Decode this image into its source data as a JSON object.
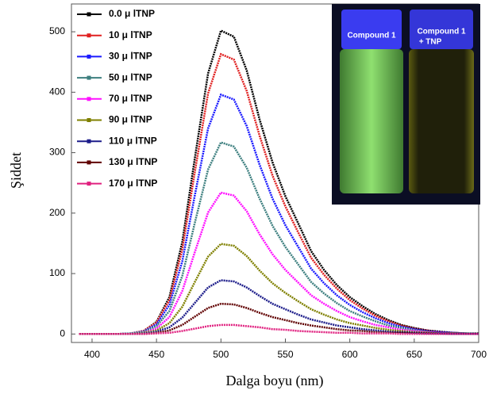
{
  "chart_data": {
    "type": "line",
    "xlabel": "Dalga boyu (nm)",
    "ylabel": "Şiddet",
    "x": [
      390,
      400,
      410,
      420,
      430,
      440,
      450,
      460,
      470,
      480,
      490,
      500,
      510,
      520,
      530,
      540,
      550,
      560,
      570,
      580,
      590,
      600,
      610,
      620,
      630,
      640,
      650,
      660,
      670,
      680,
      690,
      700
    ],
    "xlim": [
      384,
      700
    ],
    "xticks": [
      400,
      450,
      500,
      550,
      600,
      650,
      700
    ],
    "ylim": [
      -14,
      546
    ],
    "yticks": [
      0,
      100,
      200,
      300,
      400,
      500
    ],
    "legend": "upper left",
    "series": [
      {
        "name": "0.0 μ lTNP",
        "color": "#000000",
        "values": [
          0,
          0,
          0,
          0,
          1,
          5,
          20,
          61,
          152,
          294,
          431,
          502,
          492,
          436,
          355,
          284,
          228,
          183,
          137,
          106,
          81,
          61,
          46,
          33,
          23,
          15,
          10,
          6,
          4,
          2,
          1,
          1
        ]
      },
      {
        "name": "10 μ lTNP",
        "color": "#e02020",
        "values": [
          0,
          0,
          0,
          0,
          1,
          5,
          19,
          56,
          140,
          271,
          398,
          463,
          454,
          402,
          328,
          262,
          211,
          168,
          126,
          98,
          75,
          56,
          42,
          30,
          21,
          14,
          9,
          6,
          3,
          2,
          1,
          0
        ]
      },
      {
        "name": "30 μ lTNP",
        "color": "#1a1aff",
        "values": [
          0,
          0,
          0,
          0,
          1,
          4,
          16,
          48,
          120,
          232,
          340,
          396,
          388,
          344,
          280,
          224,
          180,
          144,
          108,
          84,
          64,
          48,
          36,
          26,
          18,
          12,
          8,
          5,
          3,
          2,
          1,
          0
        ]
      },
      {
        "name": "50 μ lTNP",
        "color": "#3d7f7f",
        "values": [
          0,
          0,
          0,
          0,
          1,
          3,
          13,
          38,
          96,
          186,
          272,
          317,
          310,
          275,
          224,
          179,
          144,
          115,
          86,
          67,
          51,
          38,
          29,
          21,
          14,
          10,
          6,
          4,
          2,
          1,
          1,
          0
        ]
      },
      {
        "name": "70 μ lTNP",
        "color": "#ff10ff",
        "values": [
          0,
          0,
          0,
          0,
          0,
          2,
          9,
          28,
          71,
          137,
          201,
          234,
          229,
          203,
          165,
          132,
          106,
          85,
          64,
          50,
          38,
          28,
          21,
          15,
          11,
          7,
          5,
          3,
          2,
          1,
          0,
          0
        ]
      },
      {
        "name": "90 μ lTNP",
        "color": "#7f8000",
        "values": [
          0,
          0,
          0,
          0,
          0,
          2,
          6,
          18,
          45,
          87,
          128,
          149,
          146,
          129,
          105,
          84,
          68,
          54,
          41,
          32,
          24,
          18,
          14,
          10,
          7,
          5,
          3,
          2,
          1,
          1,
          0,
          0
        ]
      },
      {
        "name": "110 μ lTNP",
        "color": "#1c1c8a",
        "values": [
          0,
          0,
          0,
          0,
          0,
          1,
          4,
          11,
          27,
          52,
          77,
          89,
          87,
          77,
          63,
          50,
          41,
          32,
          24,
          19,
          14,
          11,
          8,
          6,
          4,
          3,
          2,
          1,
          1,
          0,
          0,
          0
        ]
      },
      {
        "name": "130 μ lTNP",
        "color": "#600000",
        "values": [
          0,
          0,
          0,
          0,
          0,
          0,
          2,
          6,
          15,
          29,
          43,
          50,
          49,
          43,
          35,
          28,
          23,
          18,
          14,
          11,
          8,
          6,
          5,
          3,
          2,
          2,
          1,
          1,
          0,
          0,
          0,
          0
        ]
      },
      {
        "name": "170 μ lTNP",
        "color": "#e0207f",
        "values": [
          0,
          0,
          0,
          0,
          0,
          0,
          1,
          2,
          5,
          9,
          13,
          15,
          15,
          13,
          11,
          8,
          7,
          5,
          4,
          3,
          2,
          2,
          1,
          1,
          1,
          0,
          0,
          0,
          0,
          0,
          0,
          0
        ]
      }
    ],
    "annotations": [
      "Compound 1",
      "Compound 1",
      "+ TNP"
    ]
  }
}
